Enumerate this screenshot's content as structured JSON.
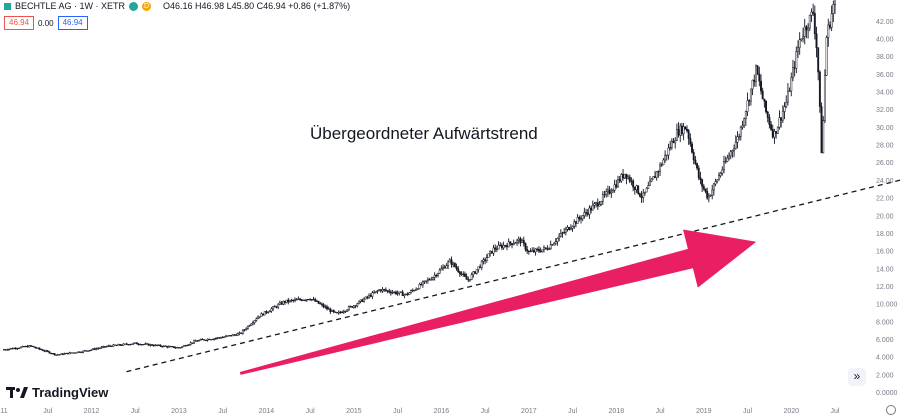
{
  "header": {
    "symbol": "BECHTLE AG · 1W · XETR",
    "badge_1": "",
    "badge_2": "D",
    "ohlc": "O46.16 H46.98 L45.80 C46.94 +0.86 (+1.87%)"
  },
  "price_boxes": [
    "46.94",
    "0.00",
    "46.94"
  ],
  "annotation": "Übergeordneter Aufwärtstrend",
  "branding": "TradingView",
  "colors": {
    "arrow": "#e91e63",
    "candle": "#131722",
    "axis_text": "#787b86",
    "trendline": "#131722"
  },
  "chart_data": {
    "type": "candlestick",
    "ylim": [
      0,
      43
    ],
    "y_ticks": [
      "0.0000",
      "2.000",
      "4.000",
      "6.000",
      "8.000",
      "10.000",
      "12.00",
      "14.00",
      "16.00",
      "18.00",
      "20.00",
      "22.00",
      "24.00",
      "26.00",
      "28.00",
      "30.00",
      "32.00",
      "34.00",
      "36.00",
      "38.00",
      "40.00",
      "42.00"
    ],
    "x_ticks": [
      {
        "label": "11",
        "t": 2011.0
      },
      {
        "label": "Jul",
        "t": 2011.5
      },
      {
        "label": "2012",
        "t": 2012.0
      },
      {
        "label": "Jul",
        "t": 2012.5
      },
      {
        "label": "2013",
        "t": 2013.0
      },
      {
        "label": "Jul",
        "t": 2013.5
      },
      {
        "label": "2014",
        "t": 2014.0
      },
      {
        "label": "Jul",
        "t": 2014.5
      },
      {
        "label": "2015",
        "t": 2015.0
      },
      {
        "label": "Jul",
        "t": 2015.5
      },
      {
        "label": "2016",
        "t": 2016.0
      },
      {
        "label": "Jul",
        "t": 2016.5
      },
      {
        "label": "2017",
        "t": 2017.0
      },
      {
        "label": "Jul",
        "t": 2017.5
      },
      {
        "label": "2018",
        "t": 2018.0
      },
      {
        "label": "Jul",
        "t": 2018.5
      },
      {
        "label": "2019",
        "t": 2019.0
      },
      {
        "label": "Jul",
        "t": 2019.5
      },
      {
        "label": "2020",
        "t": 2020.0
      },
      {
        "label": "Jul",
        "t": 2020.5
      }
    ],
    "price_path": [
      [
        2011.0,
        4.8
      ],
      [
        2011.3,
        5.2
      ],
      [
        2011.6,
        4.2
      ],
      [
        2011.9,
        4.6
      ],
      [
        2012.2,
        5.2
      ],
      [
        2012.5,
        5.5
      ],
      [
        2012.8,
        5.2
      ],
      [
        2013.0,
        5.0
      ],
      [
        2013.2,
        5.8
      ],
      [
        2013.5,
        6.2
      ],
      [
        2013.7,
        6.6
      ],
      [
        2013.9,
        8.5
      ],
      [
        2014.2,
        10.2
      ],
      [
        2014.5,
        10.6
      ],
      [
        2014.8,
        8.8
      ],
      [
        2015.0,
        9.8
      ],
      [
        2015.3,
        11.6
      ],
      [
        2015.6,
        11.0
      ],
      [
        2015.9,
        13.0
      ],
      [
        2016.1,
        14.8
      ],
      [
        2016.3,
        12.6
      ],
      [
        2016.6,
        16.2
      ],
      [
        2016.9,
        17.2
      ],
      [
        2017.0,
        15.8
      ],
      [
        2017.2,
        16.2
      ],
      [
        2017.5,
        19.0
      ],
      [
        2017.8,
        21.5
      ],
      [
        2017.95,
        23.0
      ],
      [
        2018.1,
        24.8
      ],
      [
        2018.3,
        22.0
      ],
      [
        2018.5,
        25.5
      ],
      [
        2018.7,
        29.5
      ],
      [
        2018.8,
        30.0
      ],
      [
        2018.95,
        24.0
      ],
      [
        2019.05,
        22.0
      ],
      [
        2019.2,
        25.0
      ],
      [
        2019.4,
        29.0
      ],
      [
        2019.6,
        36.5
      ],
      [
        2019.7,
        32.0
      ],
      [
        2019.8,
        29.0
      ],
      [
        2019.95,
        33.0
      ],
      [
        2020.1,
        40.0
      ],
      [
        2020.25,
        43.0
      ],
      [
        2020.3,
        38.0
      ],
      [
        2020.35,
        26.5
      ],
      [
        2020.4,
        40.0
      ],
      [
        2020.55,
        46.9
      ]
    ],
    "trendline": {
      "from": [
        2012.4,
        2.3
      ],
      "to": [
        2021.5,
        24.6
      ]
    },
    "arrow": {
      "from": [
        2013.7,
        2.1
      ],
      "to": [
        2019.6,
        17.0
      ]
    }
  }
}
